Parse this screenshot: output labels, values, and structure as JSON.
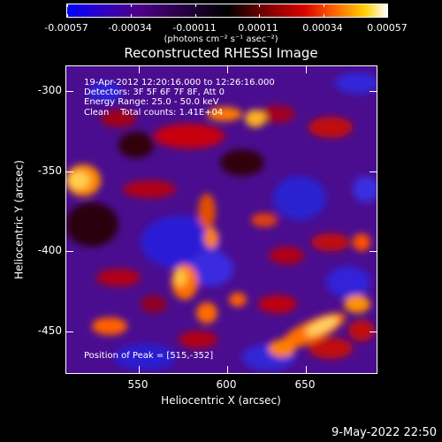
{
  "colorbar": {
    "tick_labels": [
      "-0.00057",
      "-0.00034",
      "-0.00011",
      "0.00011",
      "0.00034",
      "0.00057"
    ],
    "units_label": "(photons cm⁻² s⁻¹ asec⁻²)"
  },
  "title": "Reconstructed RHESSI Image",
  "annotations": {
    "line1": "19-Apr-2012 12:20:16.000 to 12:26:16.000",
    "line2": "Detectors: 3F 5F 6F 7F 8F, Att 0",
    "line3": "Energy Range: 25.0 - 50.0 keV",
    "line4": "Clean    Total counts: 1.41E+04",
    "peak": "Position of Peak = [515,-352]"
  },
  "axes": {
    "xlabel": "Heliocentric X (arcsec)",
    "ylabel": "Heliocentric Y (arcsec)",
    "x_ticks": [
      "550",
      "600",
      "650"
    ],
    "y_ticks": [
      "-300",
      "-350",
      "-400",
      "-450"
    ]
  },
  "timestamp": "9-May-2022 22:50"
}
